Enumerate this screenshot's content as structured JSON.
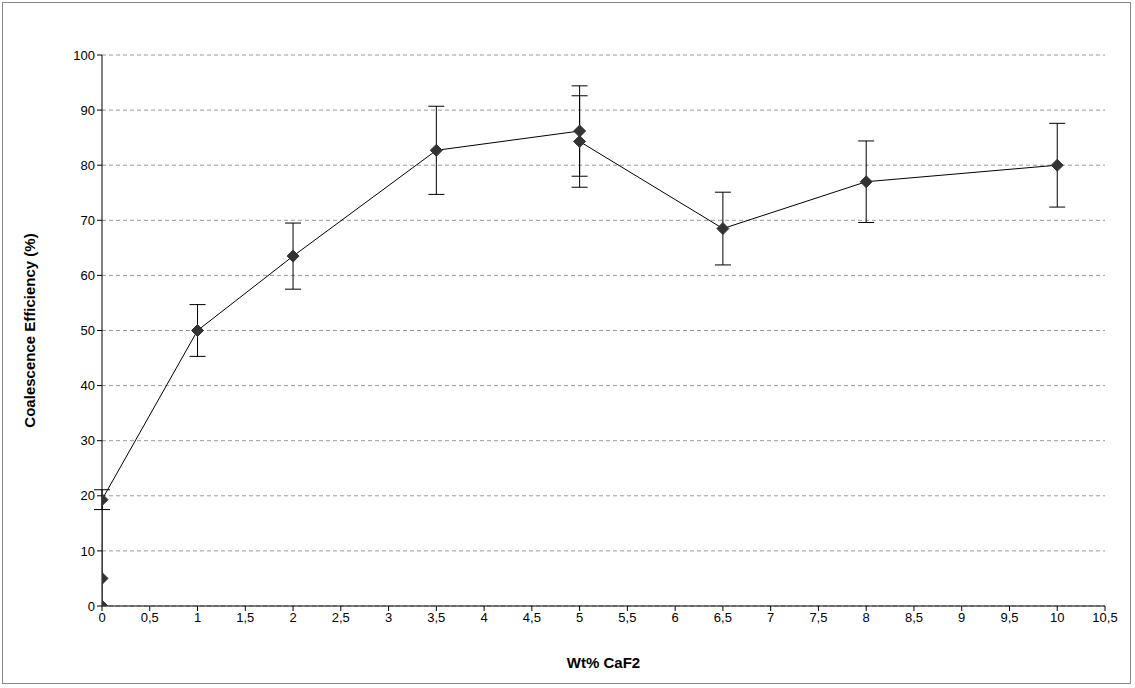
{
  "chart_data": {
    "type": "line",
    "x_label": "Wt% CaF2",
    "y_label": "Coalescence Efficiency (%)",
    "x": [
      0,
      0,
      0,
      1,
      2,
      3.5,
      5,
      5,
      6.5,
      8,
      10
    ],
    "values": [
      0,
      5,
      19.3,
      50,
      63.5,
      82.7,
      86.2,
      84.3,
      68.5,
      77,
      80
    ],
    "error": [
      null,
      null,
      1.8,
      4.7,
      6,
      8,
      8.2,
      8.3,
      6.6,
      7.4,
      7.6
    ],
    "color": "#000000",
    "marker": "diamond",
    "xlim": [
      0,
      10.5
    ],
    "xticks": [
      0,
      {
        "value": 0.5,
        "label": "0,5"
      },
      1,
      {
        "value": 1.5,
        "label": "1,5"
      },
      2,
      {
        "value": 2.5,
        "label": "2,5"
      },
      3,
      {
        "value": 3.5,
        "label": "3,5"
      },
      4,
      {
        "value": 4.5,
        "label": "4,5"
      },
      5,
      {
        "value": 5.5,
        "label": "5,5"
      },
      6,
      {
        "value": 6.5,
        "label": "6,5"
      },
      7,
      {
        "value": 7.5,
        "label": "7,5"
      },
      8,
      {
        "value": 8.5,
        "label": "8,5"
      },
      9,
      {
        "value": 9.5,
        "label": "9,5"
      },
      10,
      {
        "value": 10.5,
        "label": "10,5"
      }
    ],
    "ylim": [
      0,
      100
    ],
    "yticks": [
      0,
      10,
      20,
      30,
      40,
      50,
      60,
      70,
      80,
      90,
      100
    ],
    "grid": true
  }
}
